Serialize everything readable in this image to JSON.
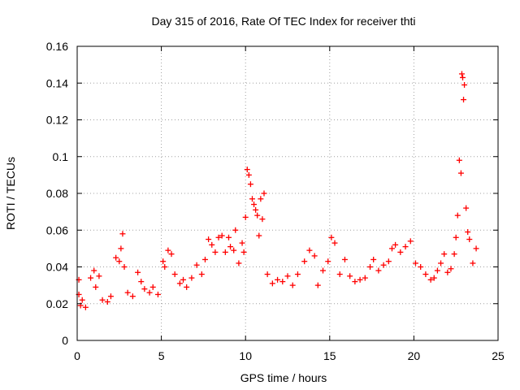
{
  "chart_data": {
    "type": "scatter",
    "title": "Day 315 of 2016, Rate Of TEC Index for receiver thti",
    "xlabel": "GPS time / hours",
    "ylabel": "ROTI / TECUs",
    "xlim": [
      0,
      25
    ],
    "ylim": [
      0,
      0.16
    ],
    "xticks": [
      "0",
      "5",
      "10",
      "15",
      "20",
      "25"
    ],
    "yticks": [
      "0",
      "0.02",
      "0.04",
      "0.06",
      "0.08",
      "0.1",
      "0.12",
      "0.14",
      "0.16"
    ],
    "grid": true,
    "marker": "+",
    "series": [
      {
        "name": "thti",
        "color": "#ff0000",
        "x": [
          0.1,
          0.1,
          0.2,
          0.3,
          0.5,
          0.8,
          1.0,
          1.1,
          1.3,
          1.5,
          1.8,
          2.0,
          2.3,
          2.5,
          2.6,
          2.7,
          2.8,
          3.0,
          3.3,
          3.6,
          3.8,
          4.0,
          4.3,
          4.5,
          4.8,
          5.1,
          5.2,
          5.4,
          5.6,
          5.8,
          6.1,
          6.3,
          6.5,
          6.8,
          7.1,
          7.4,
          7.6,
          7.8,
          8.0,
          8.2,
          8.4,
          8.6,
          8.8,
          9.0,
          9.1,
          9.3,
          9.4,
          9.6,
          9.8,
          9.9,
          10.0,
          10.1,
          10.2,
          10.3,
          10.4,
          10.5,
          10.6,
          10.7,
          10.8,
          10.9,
          11.0,
          11.1,
          11.3,
          11.6,
          11.9,
          12.2,
          12.5,
          12.8,
          13.1,
          13.5,
          13.8,
          14.1,
          14.3,
          14.6,
          14.9,
          15.1,
          15.3,
          15.6,
          15.9,
          16.2,
          16.5,
          16.8,
          17.1,
          17.4,
          17.6,
          17.9,
          18.2,
          18.5,
          18.7,
          18.9,
          19.2,
          19.5,
          19.8,
          20.1,
          20.4,
          20.7,
          21.0,
          21.2,
          21.4,
          21.6,
          21.8,
          22.0,
          22.2,
          22.4,
          22.5,
          22.6,
          22.7,
          22.8,
          22.85,
          22.9,
          22.95,
          23.0,
          23.1,
          23.2,
          23.3,
          23.5,
          23.7
        ],
        "y": [
          0.033,
          0.025,
          0.019,
          0.022,
          0.018,
          0.034,
          0.038,
          0.029,
          0.035,
          0.022,
          0.021,
          0.024,
          0.045,
          0.043,
          0.05,
          0.058,
          0.04,
          0.026,
          0.024,
          0.037,
          0.032,
          0.028,
          0.026,
          0.029,
          0.025,
          0.043,
          0.04,
          0.049,
          0.047,
          0.036,
          0.031,
          0.033,
          0.029,
          0.034,
          0.041,
          0.036,
          0.044,
          0.055,
          0.052,
          0.048,
          0.056,
          0.057,
          0.048,
          0.056,
          0.051,
          0.049,
          0.06,
          0.042,
          0.053,
          0.048,
          0.067,
          0.093,
          0.09,
          0.085,
          0.077,
          0.074,
          0.071,
          0.068,
          0.057,
          0.077,
          0.066,
          0.08,
          0.036,
          0.031,
          0.033,
          0.032,
          0.035,
          0.03,
          0.036,
          0.043,
          0.049,
          0.046,
          0.03,
          0.038,
          0.043,
          0.056,
          0.053,
          0.036,
          0.044,
          0.035,
          0.032,
          0.033,
          0.034,
          0.04,
          0.044,
          0.038,
          0.041,
          0.043,
          0.05,
          0.052,
          0.048,
          0.051,
          0.054,
          0.042,
          0.04,
          0.036,
          0.033,
          0.034,
          0.038,
          0.042,
          0.047,
          0.037,
          0.039,
          0.047,
          0.056,
          0.068,
          0.098,
          0.091,
          0.145,
          0.143,
          0.131,
          0.139,
          0.072,
          0.059,
          0.055,
          0.042,
          0.05
        ]
      }
    ]
  }
}
